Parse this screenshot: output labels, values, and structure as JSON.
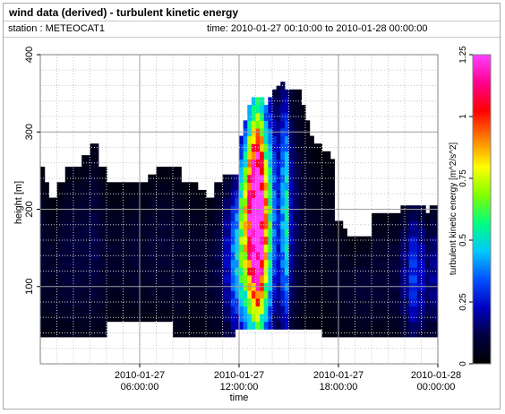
{
  "header": {
    "title": "wind data (derived) - turbulent kinetic energy",
    "station": "station : METEOCAT1",
    "time_range": "time: 2010-01-27 00:10:00 to 2010-01-28 00:00:00"
  },
  "chart_data": {
    "type": "heatmap",
    "xlabel": "time",
    "ylabel": "height [m]",
    "colorbar_label": "turbulent kinetic energy [m^2/s^2]",
    "ylim": [
      0,
      400
    ],
    "xlim_hours": [
      0,
      24
    ],
    "y_ticks": [
      100,
      200,
      300,
      400
    ],
    "x_ticks": [
      {
        "hour": 6,
        "line1": "2010-01-27",
        "line2": "06:00:00"
      },
      {
        "hour": 12,
        "line1": "2010-01-27",
        "line2": "12:00:00"
      },
      {
        "hour": 18,
        "line1": "2010-01-27",
        "line2": "18:00:00"
      },
      {
        "hour": 24,
        "line1": "2010-01-28",
        "line2": "00:00:00"
      }
    ],
    "colorbar_ticks": [
      "0",
      "0.25",
      "0.5",
      "0.75",
      "1",
      "1.25"
    ],
    "colorbar_range": [
      0,
      1.25
    ],
    "colormap": [
      "#000000",
      "#000040",
      "#0000c0",
      "#0050ff",
      "#00c8ff",
      "#00ff80",
      "#80ff00",
      "#ffff00",
      "#ff8000",
      "#ff0000",
      "#ff0090",
      "#ff40ff"
    ],
    "grid": true,
    "profiles": [
      {
        "h": 0.0,
        "bottom": 35,
        "top": 255,
        "tke": 0.06
      },
      {
        "h": 0.25,
        "bottom": 35,
        "top": 235,
        "tke": 0.05
      },
      {
        "h": 0.5,
        "bottom": 35,
        "top": 215,
        "tke": 0.05
      },
      {
        "h": 1.0,
        "bottom": 35,
        "top": 235,
        "tke": 0.06
      },
      {
        "h": 1.5,
        "bottom": 35,
        "top": 255,
        "tke": 0.07
      },
      {
        "h": 2.5,
        "bottom": 35,
        "top": 270,
        "tke": 0.07
      },
      {
        "h": 3.0,
        "bottom": 35,
        "top": 285,
        "tke": 0.08
      },
      {
        "h": 3.5,
        "bottom": 35,
        "top": 255,
        "tke": 0.06
      },
      {
        "h": 4.0,
        "bottom": 55,
        "top": 235,
        "tke": 0.05
      },
      {
        "h": 5.0,
        "bottom": 55,
        "top": 235,
        "tke": 0.05
      },
      {
        "h": 5.5,
        "bottom": 55,
        "top": 235,
        "tke": 0.06
      },
      {
        "h": 6.0,
        "bottom": 55,
        "top": 235,
        "tke": 0.05
      },
      {
        "h": 6.5,
        "bottom": 55,
        "top": 245,
        "tke": 0.06
      },
      {
        "h": 7.0,
        "bottom": 55,
        "top": 255,
        "tke": 0.06
      },
      {
        "h": 8.0,
        "bottom": 35,
        "top": 255,
        "tke": 0.06
      },
      {
        "h": 8.5,
        "bottom": 35,
        "top": 235,
        "tke": 0.05
      },
      {
        "h": 9.5,
        "bottom": 35,
        "top": 225,
        "tke": 0.05
      },
      {
        "h": 10.0,
        "bottom": 35,
        "top": 215,
        "tke": 0.06
      },
      {
        "h": 10.5,
        "bottom": 35,
        "top": 235,
        "tke": 0.08
      },
      {
        "h": 11.0,
        "bottom": 35,
        "top": 245,
        "tke": 0.15
      },
      {
        "h": 11.5,
        "bottom": 35,
        "top": 245,
        "tke": 0.25
      },
      {
        "h": 11.75,
        "bottom": 45,
        "top": 245,
        "tke": 0.32
      },
      {
        "h": 12.0,
        "bottom": 45,
        "top": 295,
        "tke": 0.45
      },
      {
        "h": 12.25,
        "bottom": 45,
        "top": 315,
        "tke": 0.55
      },
      {
        "h": 12.5,
        "bottom": 45,
        "top": 335,
        "tke": 0.75
      },
      {
        "h": 12.75,
        "bottom": 45,
        "top": 345,
        "tke": 0.9
      },
      {
        "h": 13.0,
        "bottom": 45,
        "top": 345,
        "tke": 1.0
      },
      {
        "h": 13.25,
        "bottom": 45,
        "top": 345,
        "tke": 0.85
      },
      {
        "h": 13.5,
        "bottom": 45,
        "top": 335,
        "tke": 0.6
      },
      {
        "h": 13.75,
        "bottom": 45,
        "top": 345,
        "tke": 0.4
      },
      {
        "h": 14.0,
        "bottom": 45,
        "top": 355,
        "tke": 0.25
      },
      {
        "h": 14.25,
        "bottom": 45,
        "top": 360,
        "tke": 0.18
      },
      {
        "h": 14.5,
        "bottom": 45,
        "top": 365,
        "tke": 0.28
      },
      {
        "h": 14.75,
        "bottom": 45,
        "top": 355,
        "tke": 0.35
      },
      {
        "h": 15.0,
        "bottom": 45,
        "top": 355,
        "tke": 0.15
      },
      {
        "h": 15.25,
        "bottom": 45,
        "top": 355,
        "tke": 0.1
      },
      {
        "h": 15.5,
        "bottom": 45,
        "top": 355,
        "tke": 0.08
      },
      {
        "h": 15.75,
        "bottom": 45,
        "top": 335,
        "tke": 0.06
      },
      {
        "h": 16.0,
        "bottom": 45,
        "top": 315,
        "tke": 0.05
      },
      {
        "h": 16.25,
        "bottom": 45,
        "top": 295,
        "tke": 0.05
      },
      {
        "h": 16.5,
        "bottom": 45,
        "top": 285,
        "tke": 0.04
      },
      {
        "h": 17.0,
        "bottom": 35,
        "top": 275,
        "tke": 0.04
      },
      {
        "h": 17.5,
        "bottom": 35,
        "top": 265,
        "tke": 0.04
      },
      {
        "h": 17.75,
        "bottom": 35,
        "top": 185,
        "tke": 0.05
      },
      {
        "h": 18.25,
        "bottom": 35,
        "top": 175,
        "tke": 0.05
      },
      {
        "h": 18.5,
        "bottom": 35,
        "top": 165,
        "tke": 0.05
      },
      {
        "h": 19.0,
        "bottom": 35,
        "top": 165,
        "tke": 0.06
      },
      {
        "h": 20.0,
        "bottom": 35,
        "top": 195,
        "tke": 0.06
      },
      {
        "h": 21.0,
        "bottom": 35,
        "top": 195,
        "tke": 0.07
      },
      {
        "h": 21.75,
        "bottom": 35,
        "top": 205,
        "tke": 0.12
      },
      {
        "h": 22.25,
        "bottom": 35,
        "top": 205,
        "tke": 0.2
      },
      {
        "h": 22.75,
        "bottom": 35,
        "top": 205,
        "tke": 0.15
      },
      {
        "h": 23.25,
        "bottom": 35,
        "top": 195,
        "tke": 0.1
      },
      {
        "h": 23.5,
        "bottom": 35,
        "top": 205,
        "tke": 0.12
      }
    ]
  }
}
